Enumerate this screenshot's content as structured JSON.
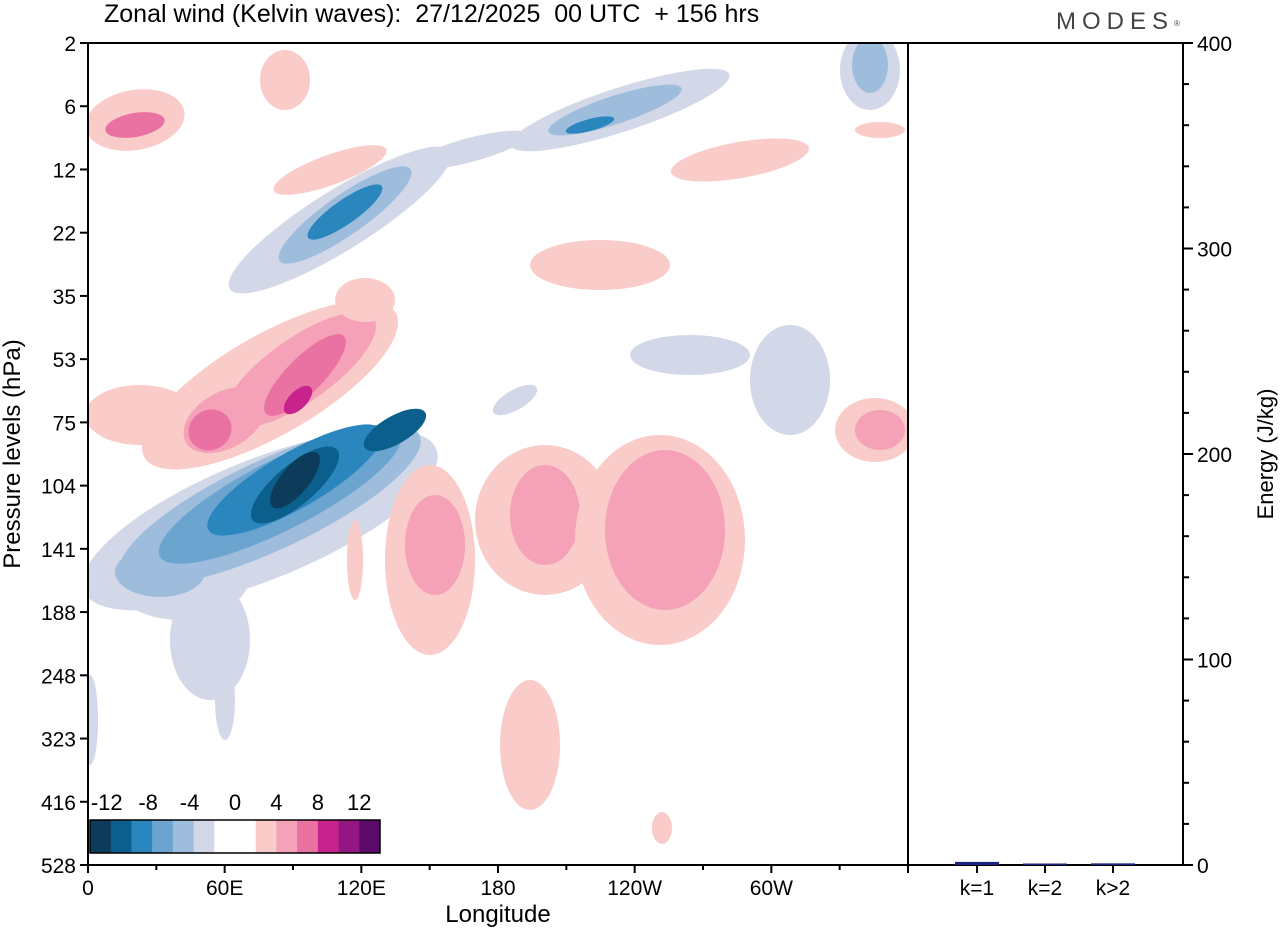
{
  "header": {
    "title": "Zonal wind (Kelvin waves):  27/12/2025  00 UTC  + 156 hrs",
    "brand": "MODES"
  },
  "chart_data": [
    {
      "type": "heatmap",
      "title": "Zonal wind (Kelvin waves):  27/12/2025  00 UTC  + 156 hrs",
      "xlabel": "Longitude",
      "ylabel": "Pressure levels (hPa)",
      "x_ticks": [
        "0",
        "60E",
        "120E",
        "180",
        "120W",
        "60W"
      ],
      "x_tick_degrees": [
        0,
        60,
        120,
        180,
        240,
        300
      ],
      "x_range_degrees": [
        0,
        360
      ],
      "y_levels_hPa": [
        "2",
        "6",
        "12",
        "22",
        "35",
        "53",
        "75",
        "104",
        "141",
        "188",
        "248",
        "323",
        "416",
        "528"
      ],
      "colorbar": {
        "labels": [
          "-12",
          "-8",
          "-4",
          "0",
          "4",
          "8",
          "12"
        ],
        "colors": [
          "#0d3b5a",
          "#0b5f8c",
          "#2a86bd",
          "#6aa4cf",
          "#9ebddd",
          "#d3d8e8",
          "#ffffff",
          "#ffffff",
          "#f9cbc9",
          "#f5a1b8",
          "#ea72a3",
          "#c8238c",
          "#921782",
          "#5b0a6b"
        ]
      },
      "features": [
        {
          "name": "deep easterly anomaly (blue core)",
          "longitude_deg": 95,
          "level_hPa": 110,
          "peak_value": -14
        },
        {
          "name": "westerly anomaly (pink core)",
          "longitude_deg": 85,
          "level_hPa": 70,
          "peak_value": 9
        },
        {
          "name": "westerly anomaly",
          "longitude_deg": 55,
          "level_hPa": 75,
          "peak_value": 7
        },
        {
          "name": "easterly band",
          "longitude_deg": 115,
          "level_hPa": 18,
          "peak_value": -8
        },
        {
          "name": "easterly band upper",
          "longitude_deg": 225,
          "level_hPa": 6,
          "peak_value": -6
        },
        {
          "name": "westerly lower",
          "longitude_deg": 235,
          "level_hPa": 130,
          "peak_value": 5
        },
        {
          "name": "westerly lower",
          "longitude_deg": 200,
          "level_hPa": 125,
          "peak_value": 5
        },
        {
          "name": "westerly lower",
          "longitude_deg": 150,
          "level_hPa": 135,
          "peak_value": 5
        }
      ]
    },
    {
      "type": "bar",
      "ylabel": "Energy (J/kg)",
      "categories": [
        "k=1",
        "k=2",
        "k>2"
      ],
      "values": [
        1.5,
        0.5,
        0.8
      ],
      "ylim": [
        0,
        400
      ],
      "y_ticks": [
        "0",
        "100",
        "200",
        "300",
        "400"
      ],
      "bar_color": "#1a237e"
    }
  ]
}
